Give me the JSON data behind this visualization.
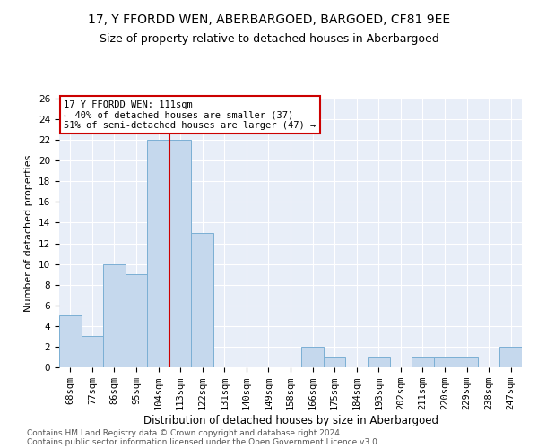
{
  "title": "17, Y FFORDD WEN, ABERBARGOED, BARGOED, CF81 9EE",
  "subtitle": "Size of property relative to detached houses in Aberbargoed",
  "xlabel": "Distribution of detached houses by size in Aberbargoed",
  "ylabel": "Number of detached properties",
  "categories": [
    "68sqm",
    "77sqm",
    "86sqm",
    "95sqm",
    "104sqm",
    "113sqm",
    "122sqm",
    "131sqm",
    "140sqm",
    "149sqm",
    "158sqm",
    "166sqm",
    "175sqm",
    "184sqm",
    "193sqm",
    "202sqm",
    "211sqm",
    "220sqm",
    "229sqm",
    "238sqm",
    "247sqm"
  ],
  "values": [
    5,
    3,
    10,
    9,
    22,
    22,
    13,
    0,
    0,
    0,
    0,
    2,
    1,
    0,
    1,
    0,
    1,
    1,
    1,
    0,
    2
  ],
  "bar_color": "#c5d8ed",
  "bar_edge_color": "#7bafd4",
  "annotation_line1": "17 Y FFORDD WEN: 111sqm",
  "annotation_line2": "← 40% of detached houses are smaller (37)",
  "annotation_line3": "51% of semi-detached houses are larger (47) →",
  "annotation_box_color": "#ffffff",
  "annotation_box_edge": "#cc0000",
  "vline_color": "#cc0000",
  "vline_x": 4.5,
  "ylim": [
    0,
    26
  ],
  "yticks": [
    0,
    2,
    4,
    6,
    8,
    10,
    12,
    14,
    16,
    18,
    20,
    22,
    24,
    26
  ],
  "bg_color": "#e8eef8",
  "footer1": "Contains HM Land Registry data © Crown copyright and database right 2024.",
  "footer2": "Contains public sector information licensed under the Open Government Licence v3.0.",
  "title_fontsize": 10,
  "subtitle_fontsize": 9,
  "xlabel_fontsize": 8.5,
  "ylabel_fontsize": 8,
  "tick_fontsize": 7.5,
  "footer_fontsize": 6.5,
  "annotation_fontsize": 7.5
}
